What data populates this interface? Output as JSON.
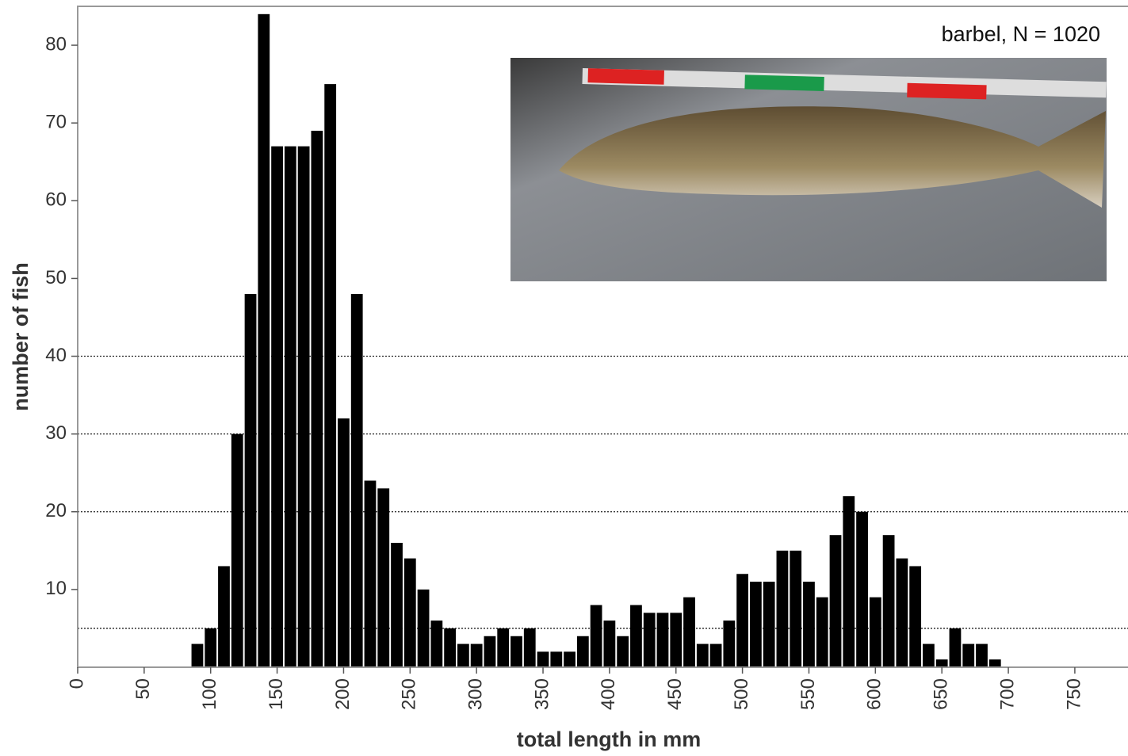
{
  "chart_data": {
    "type": "histogram",
    "annotation": "barbel, N = 1020",
    "x_label": "total length in mm",
    "y_label": "number of fish",
    "color": "#000000",
    "bins": [
      85,
      95,
      105,
      115,
      125,
      135,
      145,
      155,
      165,
      175,
      185,
      195,
      205,
      215,
      225,
      235,
      245,
      255,
      265,
      275,
      285,
      295,
      305,
      315,
      325,
      335,
      345,
      355,
      365,
      375,
      385,
      395,
      405,
      415,
      425,
      435,
      445,
      455,
      465,
      475,
      485,
      495,
      505,
      515,
      525,
      535,
      545,
      555,
      565,
      575,
      585,
      595,
      605,
      615,
      625,
      635,
      645,
      655,
      665,
      675,
      685,
      695
    ],
    "counts": [
      3,
      5,
      13,
      30,
      48,
      84,
      67,
      67,
      67,
      69,
      75,
      32,
      48,
      24,
      23,
      16,
      14,
      10,
      6,
      5,
      3,
      3,
      4,
      5,
      4,
      5,
      2,
      2,
      2,
      4,
      8,
      6,
      4,
      8,
      7,
      7,
      7,
      9,
      3,
      3,
      6,
      12,
      11,
      11,
      15,
      15,
      11,
      9,
      17,
      22,
      20,
      9,
      17,
      14,
      13,
      3,
      1,
      5,
      3,
      3,
      1
    ],
    "xlim": [
      0,
      790
    ],
    "ylim": [
      0,
      85
    ],
    "xticks": [
      0,
      50,
      100,
      150,
      200,
      250,
      300,
      350,
      400,
      450,
      500,
      550,
      600,
      650,
      700,
      750
    ],
    "yticks": [
      10,
      20,
      30,
      40,
      50,
      60,
      70,
      80
    ],
    "reference_lines": [
      5,
      20,
      30,
      40
    ]
  }
}
